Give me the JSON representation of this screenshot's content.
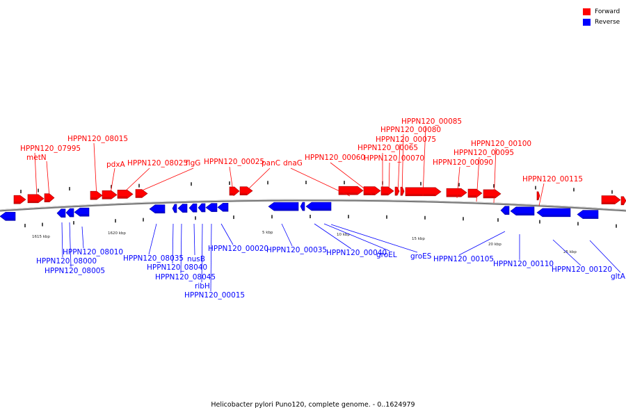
{
  "legend": {
    "forward_label": "Forward",
    "reverse_label": "Reverse",
    "forward_color": "#ff0000",
    "reverse_color": "#0000ff"
  },
  "caption": "Helicobacter pylori Puno120, complete genome. - 0..1624979",
  "scale_labels": [
    "1615 kbp",
    "1620 kbp",
    "5 kbp",
    "10 kbp",
    "15 kbp",
    "20 kbp",
    "25 kbp"
  ],
  "forward_labels": [
    "HPPN120_07995",
    "metN",
    "HPPN120_08015",
    "pdxA",
    "HPPN120_08025",
    "flgG",
    "HPPN120_00025",
    "panC",
    "dnaG",
    "HPPN120_00060",
    "HPPN120_00065",
    "HPPN120_00070",
    "HPPN120_00075",
    "HPPN120_00080",
    "HPPN120_00085",
    "HPPN120_00090",
    "HPPN120_00095",
    "HPPN120_00100",
    "HPPN120_00115"
  ],
  "reverse_labels": [
    "HPPN120_08010",
    "HPPN120_08000",
    "HPPN120_08005",
    "HPPN120_08035",
    "HPPN120_08040",
    "HPPN120_08045",
    "nusB",
    "ribH",
    "HPPN120_00015",
    "HPPN120_00020",
    "HPPN120_00035",
    "HPPN120_00040",
    "groEL",
    "groES",
    "HPPN120_00105",
    "HPPN120_00110",
    "HPPN120_00120",
    "gltA"
  ]
}
